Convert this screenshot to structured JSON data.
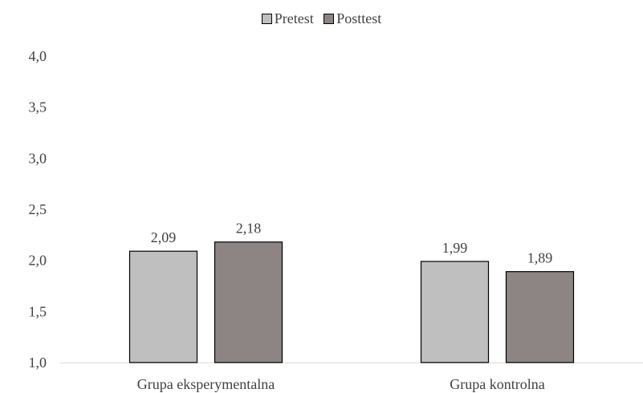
{
  "chart_data": {
    "type": "bar",
    "categories": [
      "Grupa eksperymentalna",
      "Grupa kontrolna"
    ],
    "series": [
      {
        "name": "Pretest",
        "values": [
          2.09,
          1.99
        ],
        "labels": [
          "2,09",
          "1,99"
        ],
        "color": "#bfbfbf"
      },
      {
        "name": "Posttest",
        "values": [
          2.18,
          1.89
        ],
        "labels": [
          "2,18",
          "1,89"
        ],
        "color": "#8c8583"
      }
    ],
    "ylim": [
      1.0,
      4.0
    ],
    "yticks": [
      "1,0",
      "1,5",
      "2,0",
      "2,5",
      "3,0",
      "3,5",
      "4,0"
    ],
    "grid": false,
    "legend_position": "top-center",
    "title": "",
    "xlabel": "",
    "ylabel": ""
  }
}
